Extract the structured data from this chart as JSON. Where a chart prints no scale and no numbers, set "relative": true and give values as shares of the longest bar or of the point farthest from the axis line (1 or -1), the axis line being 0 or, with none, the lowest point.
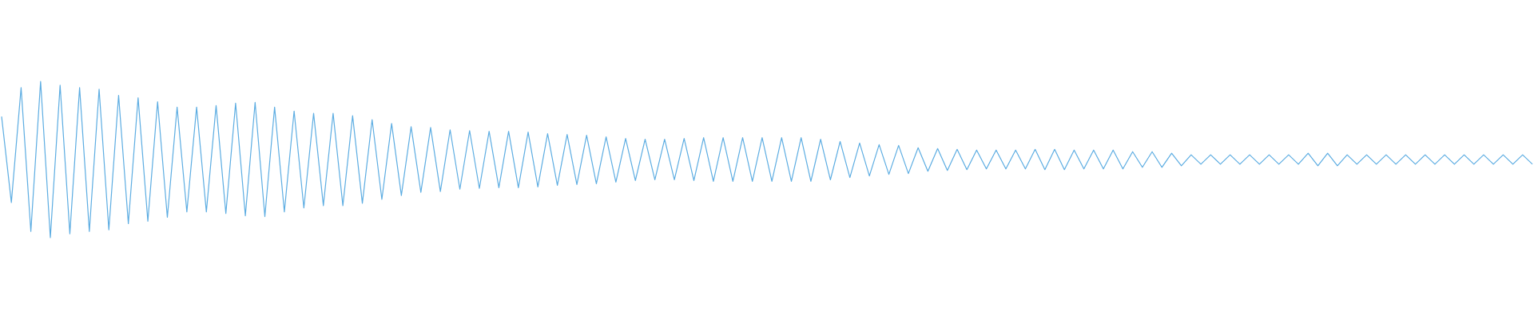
{
  "chart_data": {
    "type": "line",
    "relative": true,
    "color": "#5dade2",
    "line_style": "solid",
    "categories": [
      null,
      null,
      null,
      null,
      null,
      null,
      null,
      null,
      null,
      null,
      null,
      null,
      null,
      null,
      null,
      null,
      null,
      null,
      null,
      null,
      null,
      null,
      null,
      null,
      null,
      null,
      null,
      null,
      null,
      null,
      null,
      null,
      null,
      null,
      null,
      null,
      null,
      null,
      null,
      null,
      null,
      null,
      null,
      null,
      null,
      null,
      null,
      null,
      null,
      null,
      null,
      null,
      null,
      null,
      null,
      null,
      null,
      null,
      null,
      null,
      null,
      null,
      null,
      null,
      null,
      null,
      null,
      null,
      null,
      null,
      null,
      null,
      null,
      null,
      null,
      null,
      null,
      null,
      null,
      null,
      null,
      null,
      null,
      null,
      null,
      null,
      null,
      null,
      null,
      null,
      null,
      null,
      null,
      null,
      null,
      null,
      null,
      null,
      null,
      null,
      null,
      null,
      null,
      null,
      null,
      null,
      null,
      null,
      null,
      null,
      null,
      null,
      null,
      null,
      null,
      null,
      null,
      null,
      null,
      null,
      null,
      null,
      null,
      null,
      null,
      null,
      null,
      null,
      null,
      null,
      null,
      null,
      null,
      null,
      null,
      null,
      null,
      null,
      null,
      null,
      null,
      null,
      null,
      null,
      null,
      null,
      null,
      null,
      null,
      null,
      null,
      null,
      null,
      null,
      null,
      null,
      null,
      null
    ],
    "values": [
      0.775,
      0.225,
      0.96,
      0.04,
      1,
      0,
      0.975,
      0.025,
      0.96,
      0.04,
      0.95,
      0.05,
      0.91,
      0.09,
      0.895,
      0.105,
      0.87,
      0.13,
      0.835,
      0.165,
      0.835,
      0.165,
      0.845,
      0.155,
      0.86,
      0.14,
      0.865,
      0.135,
      0.835,
      0.165,
      0.81,
      0.19,
      0.795,
      0.205,
      0.795,
      0.205,
      0.78,
      0.22,
      0.755,
      0.245,
      0.73,
      0.27,
      0.71,
      0.29,
      0.705,
      0.295,
      0.69,
      0.31,
      0.685,
      0.315,
      0.68,
      0.32,
      0.68,
      0.32,
      0.675,
      0.325,
      0.665,
      0.335,
      0.66,
      0.34,
      0.655,
      0.345,
      0.645,
      0.355,
      0.635,
      0.365,
      0.63,
      0.37,
      0.63,
      0.37,
      0.635,
      0.365,
      0.64,
      0.36,
      0.64,
      0.36,
      0.64,
      0.36,
      0.64,
      0.36,
      0.64,
      0.36,
      0.64,
      0.36,
      0.63,
      0.37,
      0.615,
      0.385,
      0.605,
      0.395,
      0.595,
      0.405,
      0.59,
      0.41,
      0.575,
      0.425,
      0.57,
      0.43,
      0.565,
      0.435,
      0.56,
      0.44,
      0.56,
      0.44,
      0.56,
      0.44,
      0.565,
      0.435,
      0.565,
      0.435,
      0.56,
      0.44,
      0.56,
      0.44,
      0.56,
      0.44,
      0.55,
      0.45,
      0.55,
      0.45,
      0.54,
      0.46,
      0.53,
      0.47,
      0.53,
      0.47,
      0.53,
      0.47,
      0.53,
      0.47,
      0.53,
      0.47,
      0.53,
      0.47,
      0.54,
      0.46,
      0.54,
      0.46,
      0.53,
      0.47,
      0.53,
      0.47,
      0.53,
      0.47,
      0.53,
      0.47,
      0.53,
      0.47,
      0.53,
      0.47,
      0.53,
      0.47,
      0.53,
      0.47,
      0.53,
      0.47,
      0.53,
      0.47
    ]
  }
}
